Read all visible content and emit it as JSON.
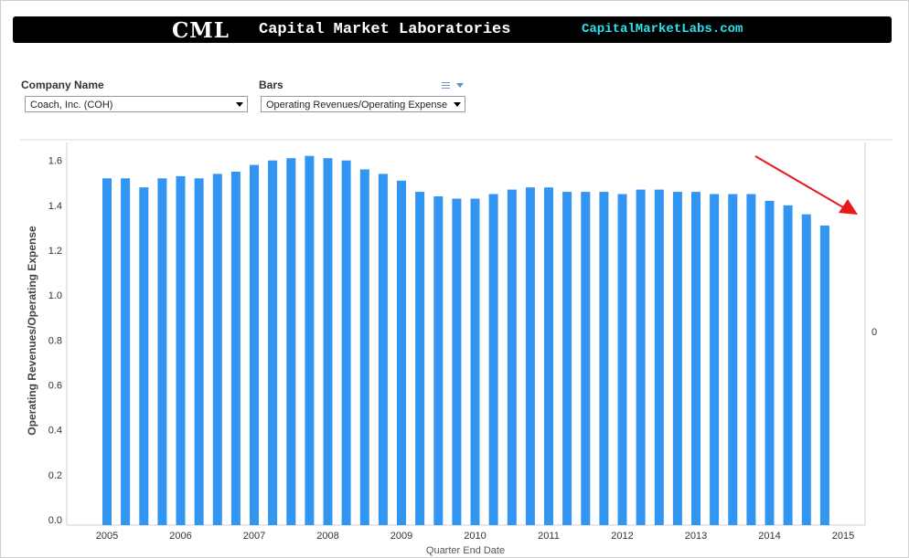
{
  "banner": {
    "logo": "CML",
    "name": "Capital Market Laboratories",
    "url": "CapitalMarketLabs.com"
  },
  "controls": {
    "company_label": "Company Name",
    "company_value": "Coach, Inc. (COH)",
    "bars_label": "Bars",
    "bars_value": "Operating Revenues/Operating Expense"
  },
  "colors": {
    "bar": "#3395f2",
    "annotation_arrow": "#e8191a"
  },
  "chart_data": {
    "type": "bar",
    "xlabel": "Quarter End Date",
    "ylabel": "Operating Revenues/Operating Expense",
    "ylim": [
      0,
      1.68
    ],
    "yticks": [
      0.0,
      0.2,
      0.4,
      0.6,
      0.8,
      1.0,
      1.2,
      1.4,
      1.6
    ],
    "ytick_labels": [
      "0.0",
      "0.2",
      "0.4",
      "0.6",
      "0.8",
      "1.0",
      "1.2",
      "1.4",
      "1.6"
    ],
    "secondary_axis_label": "0",
    "x_years": [
      "2005",
      "2006",
      "2007",
      "2008",
      "2009",
      "2010",
      "2011",
      "2012",
      "2013",
      "2014",
      "2015"
    ],
    "grid": false,
    "annotation": "red arrow pointing down-right at end of series",
    "x": [
      "2004Q4",
      "2005Q1",
      "2005Q2",
      "2005Q3",
      "2005Q4",
      "2006Q1",
      "2006Q2",
      "2006Q3",
      "2006Q4",
      "2007Q1",
      "2007Q2",
      "2007Q3",
      "2007Q4",
      "2008Q1",
      "2008Q2",
      "2008Q3",
      "2008Q4",
      "2009Q1",
      "2009Q2",
      "2009Q3",
      "2009Q4",
      "2010Q1",
      "2010Q2",
      "2010Q3",
      "2010Q4",
      "2011Q1",
      "2011Q2",
      "2011Q3",
      "2011Q4",
      "2012Q1",
      "2012Q2",
      "2012Q3",
      "2012Q4",
      "2013Q1",
      "2013Q2",
      "2013Q3",
      "2013Q4",
      "2014Q1",
      "2014Q2",
      "2014Q3"
    ],
    "values": [
      1.52,
      1.52,
      1.48,
      1.52,
      1.53,
      1.52,
      1.54,
      1.55,
      1.58,
      1.6,
      1.61,
      1.62,
      1.61,
      1.6,
      1.56,
      1.54,
      1.51,
      1.46,
      1.44,
      1.43,
      1.43,
      1.45,
      1.47,
      1.48,
      1.48,
      1.46,
      1.46,
      1.46,
      1.45,
      1.47,
      1.47,
      1.46,
      1.46,
      1.45,
      1.45,
      1.45,
      1.42,
      1.4,
      1.36,
      1.31
    ]
  }
}
